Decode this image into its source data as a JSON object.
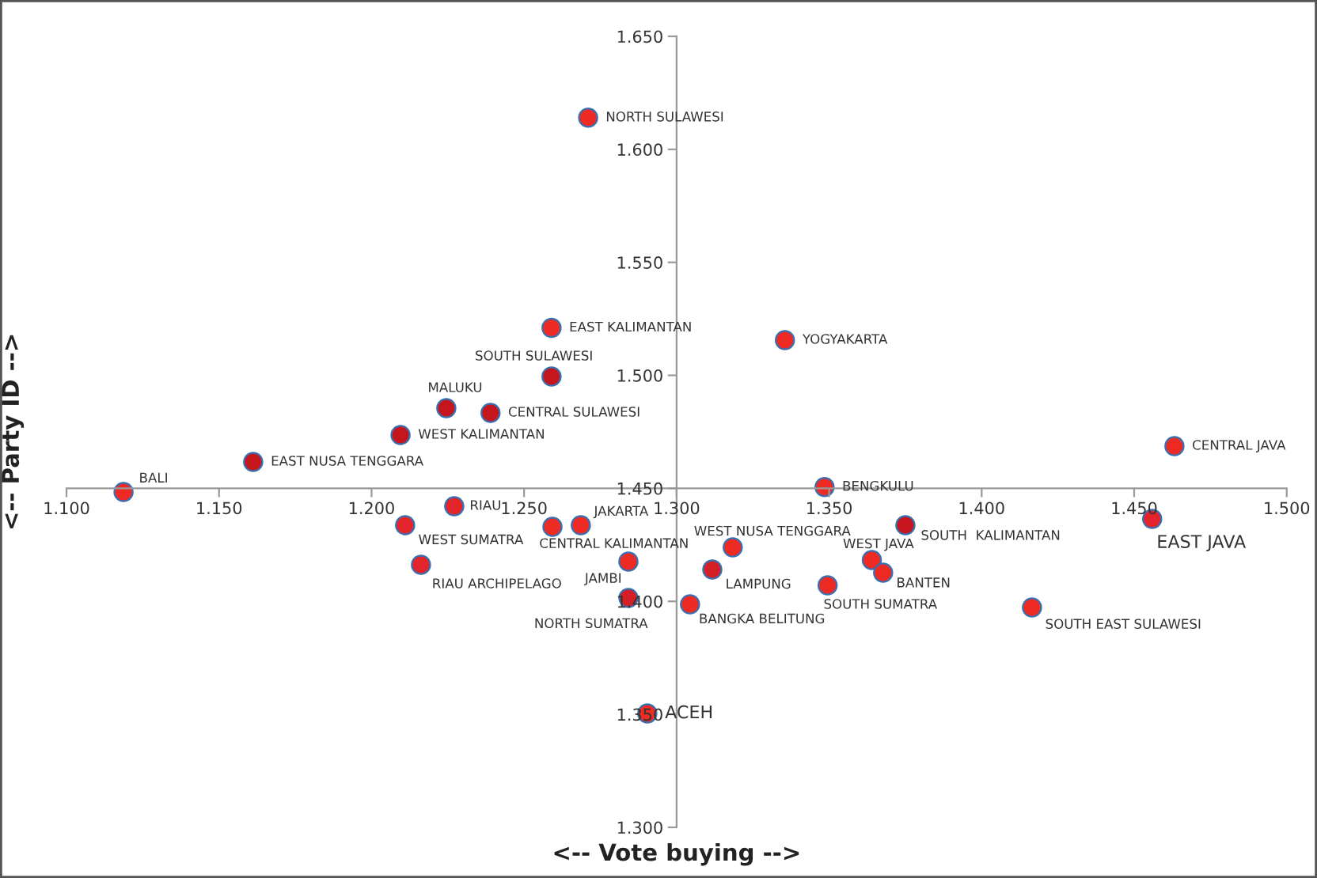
{
  "chart_data": {
    "type": "scatter",
    "xlabel": "<-- Vote buying -->",
    "ylabel": "<-- Party ID -->",
    "xlim": [
      1.1,
      1.5
    ],
    "ylim": [
      1.3,
      1.65
    ],
    "xticks": [
      {
        "value": 1.1,
        "label": "1.100"
      },
      {
        "value": 1.15,
        "label": "1.150"
      },
      {
        "value": 1.2,
        "label": "1.200"
      },
      {
        "value": 1.25,
        "label": "1.250"
      },
      {
        "value": 1.3,
        "label": "1.300"
      },
      {
        "value": 1.35,
        "label": "1.350"
      },
      {
        "value": 1.4,
        "label": "1.400"
      },
      {
        "value": 1.45,
        "label": "1.450"
      },
      {
        "value": 1.5,
        "label": "1.500"
      }
    ],
    "yticks": [
      {
        "value": 1.3,
        "label": "1.300"
      },
      {
        "value": 1.35,
        "label": "1.350"
      },
      {
        "value": 1.4,
        "label": "1.400"
      },
      {
        "value": 1.45,
        "label": "1.450"
      },
      {
        "value": 1.5,
        "label": "1.500"
      },
      {
        "value": 1.55,
        "label": "1.550"
      },
      {
        "value": 1.6,
        "label": "1.600"
      },
      {
        "value": 1.65,
        "label": "1.650"
      }
    ],
    "grid": false,
    "marker": "circle",
    "x": [
      1.271,
      1.259,
      1.259,
      1.2245,
      1.239,
      1.2095,
      1.1612,
      1.1187,
      1.3355,
      1.4632,
      1.3485,
      1.2271,
      1.211,
      1.2593,
      1.2686,
      1.2162,
      1.2842,
      1.2842,
      1.2904,
      1.3184,
      1.3117,
      1.3044,
      1.3495,
      1.364,
      1.3677,
      1.375,
      1.4559,
      1.4165
    ],
    "values": [
      1.614,
      1.521,
      1.4995,
      1.4855,
      1.4834,
      1.4736,
      1.4617,
      1.4484,
      1.5156,
      1.4687,
      1.4506,
      1.4421,
      1.4337,
      1.433,
      1.4337,
      1.4162,
      1.4176,
      1.4015,
      1.3504,
      1.4239,
      1.4141,
      1.3987,
      1.4071,
      1.4183,
      1.4127,
      1.4337,
      1.4365,
      1.3973
    ],
    "colors": [
      "#ee2a24",
      "#ee2a24",
      "#c4161c",
      "#c4161c",
      "#c4161c",
      "#c4161c",
      "#c4161c",
      "#ee2a24",
      "#ee2a24",
      "#ee2a24",
      "#ee2a24",
      "#e3242b",
      "#e3242b",
      "#ee2a24",
      "#ee2a24",
      "#e3242b",
      "#ee2a24",
      "#d41f26",
      "#ee2a24",
      "#ee2a24",
      "#d41f26",
      "#ee2a24",
      "#ee2a24",
      "#ee2a24",
      "#ee2a24",
      "#c4161c",
      "#e3242b",
      "#ee2a24"
    ],
    "annotations": [
      {
        "text": "NORTH SULAWESI",
        "x": 1.271,
        "y": 1.614
      },
      {
        "text": "EAST KALIMANTAN",
        "x": 1.259,
        "y": 1.521
      },
      {
        "text": "SOUTH SULAWESI",
        "x": 1.259,
        "y": 1.4995
      },
      {
        "text": "MALUKU",
        "x": 1.2245,
        "y": 1.4855
      },
      {
        "text": "CENTRAL SULAWESI",
        "x": 1.239,
        "y": 1.4834
      },
      {
        "text": "WEST KALIMANTAN",
        "x": 1.2095,
        "y": 1.4736
      },
      {
        "text": "EAST NUSA TENGGARA",
        "x": 1.1612,
        "y": 1.4617
      },
      {
        "text": "BALI",
        "x": 1.1187,
        "y": 1.4484
      },
      {
        "text": "YOGYAKARTA",
        "x": 1.3355,
        "y": 1.5156
      },
      {
        "text": "CENTRAL JAVA",
        "x": 1.4632,
        "y": 1.4687
      },
      {
        "text": "BENGKULU",
        "x": 1.3485,
        "y": 1.4506
      },
      {
        "text": "RIAU",
        "x": 1.2271,
        "y": 1.4421
      },
      {
        "text": "WEST SUMATRA",
        "x": 1.211,
        "y": 1.4337
      },
      {
        "text": "CENTRAL KALIMANTAN",
        "x": 1.2593,
        "y": 1.433
      },
      {
        "text": "JAKARTA",
        "x": 1.2686,
        "y": 1.4337
      },
      {
        "text": "RIAU ARCHIPELAGO",
        "x": 1.2162,
        "y": 1.4162
      },
      {
        "text": "JAMBI",
        "x": 1.2842,
        "y": 1.4176
      },
      {
        "text": "NORTH SUMATRA",
        "x": 1.2842,
        "y": 1.4015
      },
      {
        "text": "ACEH",
        "x": 1.2904,
        "y": 1.3504
      },
      {
        "text": "WEST NUSA TENGGARA",
        "x": 1.3184,
        "y": 1.4239
      },
      {
        "text": "LAMPUNG",
        "x": 1.3117,
        "y": 1.4141
      },
      {
        "text": "BANGKA BELITUNG",
        "x": 1.3044,
        "y": 1.3987
      },
      {
        "text": "SOUTH SUMATRA",
        "x": 1.3495,
        "y": 1.4071
      },
      {
        "text": "WEST JAVA",
        "x": 1.364,
        "y": 1.4183
      },
      {
        "text": "BANTEN",
        "x": 1.3677,
        "y": 1.4127
      },
      {
        "text": "SOUTH  KALIMANTAN",
        "x": 1.375,
        "y": 1.4337
      },
      {
        "text": "EAST JAVA",
        "x": 1.4559,
        "y": 1.4365
      },
      {
        "text": "SOUTH EAST SULAWESI",
        "x": 1.4165,
        "y": 1.3973
      }
    ]
  }
}
